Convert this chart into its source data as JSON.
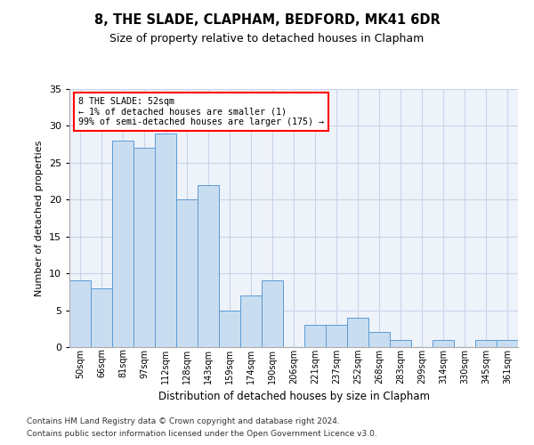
{
  "title": "8, THE SLADE, CLAPHAM, BEDFORD, MK41 6DR",
  "subtitle": "Size of property relative to detached houses in Clapham",
  "xlabel": "Distribution of detached houses by size in Clapham",
  "ylabel": "Number of detached properties",
  "bar_color": "#c9ddf0",
  "bar_edge_color": "#5b9bd5",
  "categories": [
    "50sqm",
    "66sqm",
    "81sqm",
    "97sqm",
    "112sqm",
    "128sqm",
    "143sqm",
    "159sqm",
    "174sqm",
    "190sqm",
    "206sqm",
    "221sqm",
    "237sqm",
    "252sqm",
    "268sqm",
    "283sqm",
    "299sqm",
    "314sqm",
    "330sqm",
    "345sqm",
    "361sqm"
  ],
  "values": [
    9,
    8,
    28,
    27,
    29,
    20,
    22,
    5,
    7,
    9,
    0,
    3,
    3,
    4,
    2,
    1,
    0,
    1,
    0,
    1,
    1
  ],
  "ylim": [
    0,
    35
  ],
  "yticks": [
    0,
    5,
    10,
    15,
    20,
    25,
    30,
    35
  ],
  "annotation_text": "8 THE SLADE: 52sqm\n← 1% of detached houses are smaller (1)\n99% of semi-detached houses are larger (175) →",
  "annotation_box_color": "white",
  "annotation_box_edge_color": "red",
  "bg_color": "#eef2f9",
  "grid_color": "#c8d4e8",
  "footer_line1": "Contains HM Land Registry data © Crown copyright and database right 2024.",
  "footer_line2": "Contains public sector information licensed under the Open Government Licence v3.0."
}
